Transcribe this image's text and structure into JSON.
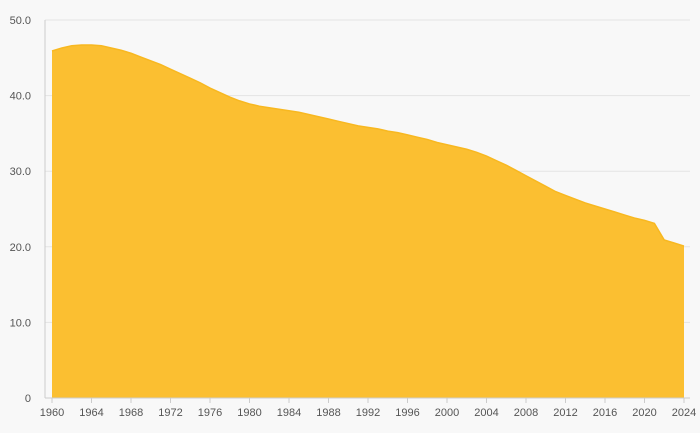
{
  "chart_data": {
    "type": "area",
    "title": "",
    "xlabel": "",
    "ylabel": "",
    "xlim": [
      1960,
      2024
    ],
    "ylim": [
      0,
      50
    ],
    "y_ticks": [
      0,
      10,
      20,
      30,
      40,
      50
    ],
    "y_tick_labels": [
      "0",
      "10.0",
      "20.0",
      "30.0",
      "40.0",
      "50.0"
    ],
    "x_ticks": [
      1960,
      1964,
      1968,
      1972,
      1976,
      1980,
      1984,
      1988,
      1992,
      1996,
      2000,
      2004,
      2008,
      2012,
      2016,
      2020,
      2024
    ],
    "x_tick_labels": [
      "1960",
      "1964",
      "1968",
      "1972",
      "1976",
      "1980",
      "1984",
      "1988",
      "1992",
      "1996",
      "2000",
      "2004",
      "2008",
      "2012",
      "2016",
      "2020",
      "2024"
    ],
    "grid": true,
    "legend": "none",
    "colors": {
      "fill": "#fbbf31",
      "stroke": "#f8b820"
    },
    "series": [
      {
        "x": [
          1960,
          1961,
          1962,
          1963,
          1964,
          1965,
          1966,
          1967,
          1968,
          1969,
          1970,
          1971,
          1972,
          1973,
          1974,
          1975,
          1976,
          1977,
          1978,
          1979,
          1980,
          1981,
          1982,
          1983,
          1984,
          1985,
          1986,
          1987,
          1988,
          1989,
          1990,
          1991,
          1992,
          1993,
          1994,
          1995,
          1996,
          1997,
          1998,
          1999,
          2000,
          2001,
          2002,
          2003,
          2004,
          2005,
          2006,
          2007,
          2008,
          2009,
          2010,
          2011,
          2012,
          2013,
          2014,
          2015,
          2016,
          2017,
          2018,
          2019,
          2020,
          2021,
          2022,
          2023,
          2024
        ],
        "values": [
          45.9,
          46.3,
          46.6,
          46.7,
          46.7,
          46.6,
          46.3,
          46.0,
          45.6,
          45.1,
          44.6,
          44.1,
          43.5,
          42.9,
          42.3,
          41.7,
          41.0,
          40.4,
          39.8,
          39.3,
          38.9,
          38.6,
          38.4,
          38.2,
          38.0,
          37.8,
          37.5,
          37.2,
          36.9,
          36.6,
          36.3,
          36.0,
          35.8,
          35.6,
          35.3,
          35.1,
          34.8,
          34.5,
          34.2,
          33.8,
          33.5,
          33.2,
          32.9,
          32.5,
          32.0,
          31.4,
          30.8,
          30.1,
          29.4,
          28.7,
          28.0,
          27.3,
          26.8,
          26.3,
          25.8,
          25.4,
          25.0,
          24.6,
          24.2,
          23.8,
          23.5,
          23.1,
          20.9,
          20.5,
          20.1
        ]
      }
    ]
  }
}
